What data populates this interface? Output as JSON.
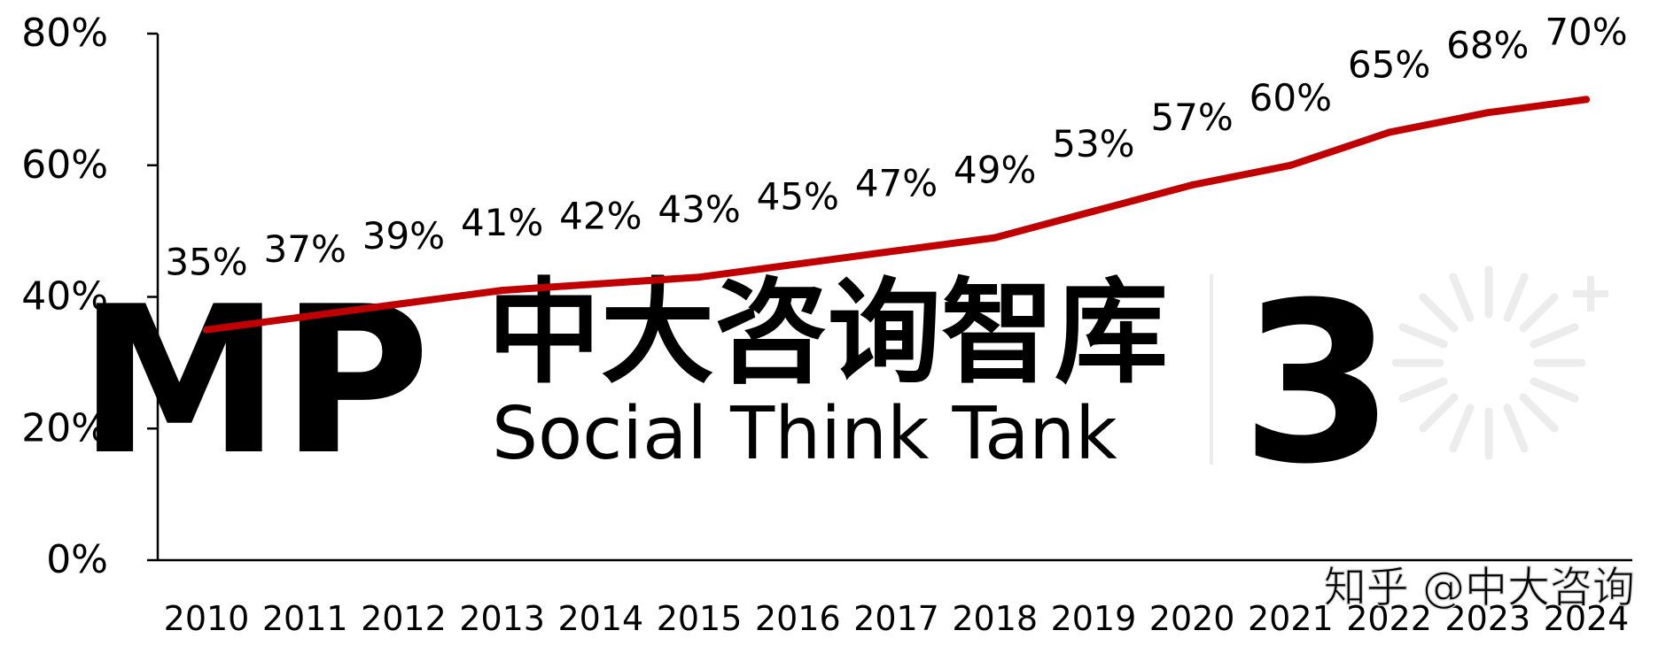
{
  "chart_data": {
    "type": "line",
    "categories": [
      "2010",
      "2011",
      "2012",
      "2013",
      "2014",
      "2015",
      "2016",
      "2017",
      "2018",
      "2019",
      "2020",
      "2021",
      "2022",
      "2023",
      "2024"
    ],
    "series": [
      {
        "values": [
          35,
          37,
          39,
          41,
          42,
          43,
          45,
          47,
          49,
          53,
          57,
          60,
          65,
          68,
          70
        ],
        "color": "#c00000"
      }
    ],
    "data_labels": [
      "35%",
      "37%",
      "39%",
      "41%",
      "42%",
      "43%",
      "45%",
      "47%",
      "49%",
      "53%",
      "57%",
      "60%",
      "65%",
      "68%",
      "70%"
    ],
    "y_ticks": [
      0,
      20,
      40,
      60,
      80
    ],
    "y_tick_labels": [
      "0%",
      "20%",
      "40%",
      "60%",
      "80%"
    ],
    "ylim": [
      0,
      80
    ],
    "title": "",
    "xlabel": "",
    "ylabel": "",
    "grid": false,
    "legend": "none"
  },
  "watermark": {
    "logo": "MP",
    "name_cn": "中大咨询智库",
    "name_en": "Social Think Tank",
    "badge": "3",
    "credit": "知乎 @中大咨询"
  },
  "colors": {
    "line": "#c00000",
    "axis": "#000000",
    "watermark": "#ececec"
  }
}
